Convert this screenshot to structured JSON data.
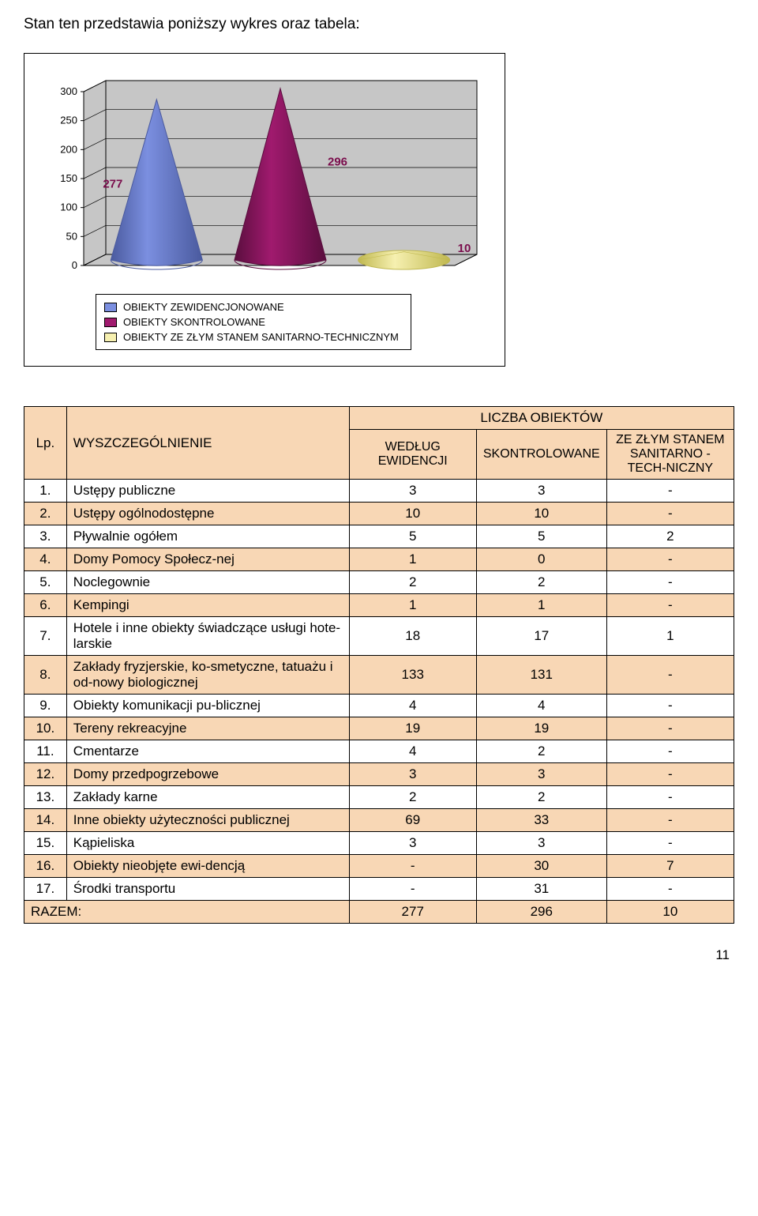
{
  "intro_text": "Stan ten przedstawia poniższy wykres oraz tabela:",
  "chart": {
    "type": "3d-cone-bar",
    "values": [
      277,
      296,
      10
    ],
    "labels": [
      "277",
      "296",
      "10"
    ],
    "colors": [
      "#7b8fe0",
      "#a01a6e",
      "#f6f0b0"
    ],
    "edge_colors": [
      "#4a5a9e",
      "#5a0e3e",
      "#c0b850"
    ],
    "y_max": 300,
    "y_ticks": [
      0,
      50,
      100,
      150,
      200,
      250,
      300
    ],
    "axis_tick_fontsize": 13,
    "data_label_fontsize": 15,
    "data_label_color": "#7a0d4c",
    "axis_color": "#000000",
    "backwall_fill": "#c6c6c6",
    "floor_fill": "#c6c6c6",
    "legend_items": [
      {
        "color": "#7b8fe0",
        "label": "OBIEKTY ZEWIDENCJONOWANE"
      },
      {
        "color": "#a01a6e",
        "label": "OBIEKTY SKONTROLOWANE"
      },
      {
        "color": "#f6f0b0",
        "label": "OBIEKTY ZE ZŁYM STANEM SANITARNO-TECHNICZNYM"
      }
    ]
  },
  "table": {
    "header_top": "LICZBA OBIEKTÓW",
    "header_cols": [
      "Lp.",
      "WYSZCZEGÓLNIENIE",
      "WEDŁUG EWIDENCJI",
      "SKONTROLOWANE",
      "ZE ZŁYM STANEM SANITARNO - TECH-NICZNY"
    ],
    "rows": [
      [
        "1.",
        "Ustępy publiczne",
        "3",
        "3",
        "-"
      ],
      [
        "2.",
        "Ustępy ogólnodostępne",
        "10",
        "10",
        "-"
      ],
      [
        "3.",
        "Pływalnie ogółem",
        "5",
        "5",
        "2"
      ],
      [
        "4.",
        "Domy Pomocy Społecz-nej",
        "1",
        "0",
        "-"
      ],
      [
        "5.",
        "Noclegownie",
        "2",
        "2",
        "-"
      ],
      [
        "6.",
        "Kempingi",
        "1",
        "1",
        "-"
      ],
      [
        "7.",
        "Hotele i inne obiekty świadczące usługi hote-larskie",
        "18",
        "17",
        "1"
      ],
      [
        "8.",
        "Zakłady fryzjerskie, ko-smetyczne, tatuażu i od-nowy biologicznej",
        "133",
        "131",
        "-"
      ],
      [
        "9.",
        "Obiekty komunikacji pu-blicznej",
        "4",
        "4",
        "-"
      ],
      [
        "10.",
        "Tereny rekreacyjne",
        "19",
        "19",
        "-"
      ],
      [
        "11.",
        "Cmentarze",
        "4",
        "2",
        "-"
      ],
      [
        "12.",
        "Domy przedpogrzebowe",
        "3",
        "3",
        "-"
      ],
      [
        "13.",
        "Zakłady karne",
        "2",
        "2",
        "-"
      ],
      [
        "14.",
        "Inne obiekty użyteczności publicznej",
        "69",
        "33",
        "-"
      ],
      [
        "15.",
        "Kąpieliska",
        "3",
        "3",
        "-"
      ],
      [
        "16.",
        "Obiekty nieobjęte ewi-dencją",
        "-",
        "30",
        "7"
      ],
      [
        "17.",
        "Środki transportu",
        "-",
        "31",
        "-"
      ]
    ],
    "total_row": [
      "RAZEM:",
      "277",
      "296",
      "10"
    ],
    "header_bg": "#f8d7b5",
    "row_alt_bg_a": "#f8d7b5",
    "row_alt_bg_b": "#ffffff",
    "border_color": "#000000",
    "col_widths_pct": [
      6,
      40,
      18,
      18,
      18
    ]
  },
  "page_number": "11"
}
